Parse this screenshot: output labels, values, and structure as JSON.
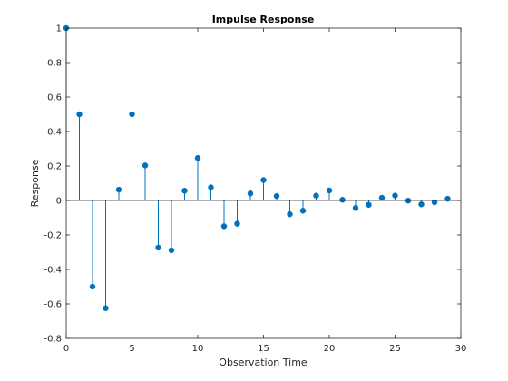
{
  "chart_data": {
    "type": "stem",
    "title": "Impulse Response",
    "xlabel": "Observation Time",
    "ylabel": "Response",
    "xlim": [
      0,
      30
    ],
    "ylim": [
      -0.8,
      1
    ],
    "x_ticks": [
      0,
      5,
      10,
      15,
      20,
      25,
      30
    ],
    "x_tick_labels": [
      "0",
      "5",
      "10",
      "15",
      "20",
      "25",
      "30"
    ],
    "y_ticks": [
      -0.8,
      -0.6,
      -0.4,
      -0.2,
      0,
      0.2,
      0.4,
      0.6,
      0.8,
      1
    ],
    "y_tick_labels": [
      "-0.8",
      "-0.6",
      "-0.4",
      "-0.2",
      "0",
      "0.2",
      "0.4",
      "0.6",
      "0.8",
      "1"
    ],
    "grid": false,
    "baseline": 0,
    "x": [
      0,
      1,
      2,
      3,
      4,
      5,
      6,
      7,
      8,
      9,
      10,
      11,
      12,
      13,
      14,
      15,
      16,
      17,
      18,
      19,
      20,
      21,
      22,
      23,
      24,
      25,
      26,
      27,
      28,
      29
    ],
    "values": [
      1,
      0.5,
      -0.5,
      -0.625,
      0.0625,
      0.5,
      0.2031,
      -0.2734,
      -0.2891,
      0.0566,
      0.2461,
      0.0762,
      -0.1494,
      -0.1348,
      0.0405,
      0.1184,
      0.0256,
      -0.0798,
      -0.0592,
      0.0278,
      0.0582,
      0.0038,
      -0.0436,
      -0.0252,
      0.0159,
      0.0283,
      -0.0011,
      -0.0225,
      -0.0105,
      0.0101
    ]
  },
  "colors": {
    "stem": "#0072BD",
    "axes": "#262626",
    "background": "#ffffff"
  }
}
